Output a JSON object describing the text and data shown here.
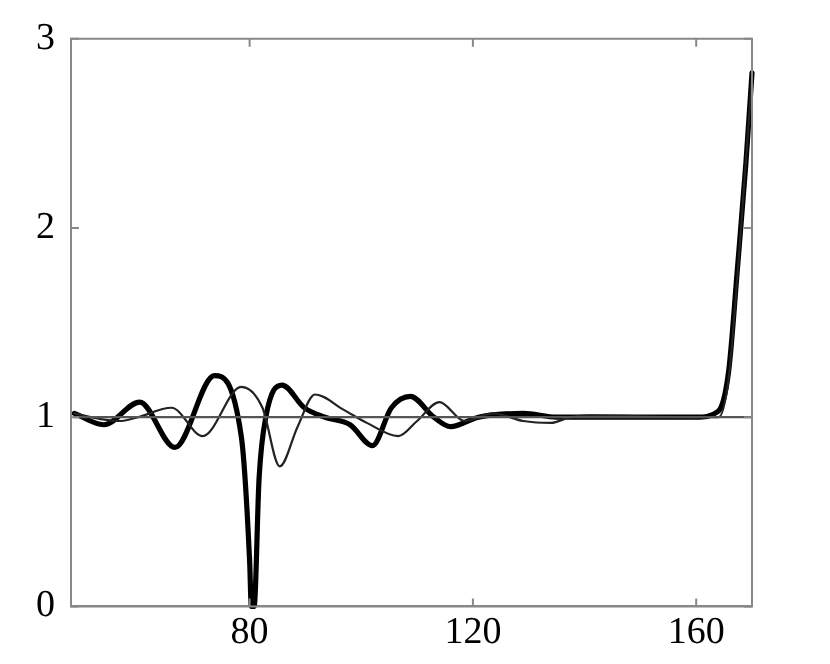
{
  "chart_data": {
    "type": "line",
    "xlim": [
      48,
      170
    ],
    "xticks": [
      80,
      120,
      160
    ],
    "ylim": [
      0,
      3
    ],
    "yticks": [
      0,
      1,
      2,
      3
    ],
    "grid": false,
    "legend": false,
    "marker": "none",
    "line_style": "solid",
    "series": [
      {
        "color": "#000000",
        "x": [
          48.6,
          53.9,
          60.3,
          66.6,
          73.7,
          78.5,
          80,
          80.3,
          80.8,
          81.7,
          82.9,
          85.8,
          89.8,
          93.5,
          98,
          102,
          105.4,
          108.8,
          113,
          116,
          121,
          129,
          135,
          160,
          163.9,
          165.8,
          167.4,
          168.9,
          170
        ],
        "values": [
          1.02,
          0.96,
          1.08,
          0.84,
          1.22,
          0.9,
          0.24,
          0,
          0,
          0.68,
          1.0,
          1.17,
          1.05,
          1.0,
          0.96,
          0.85,
          1.05,
          1.11,
          1.0,
          0.95,
          1.0,
          1.02,
          1.0,
          1.0,
          1.03,
          1.24,
          1.79,
          2.34,
          2.82
        ]
      },
      {
        "color": "#222222",
        "x": [
          48.6,
          53.3,
          57,
          60,
          66,
          71.6,
          78.5,
          82.3,
          85.4,
          88.6,
          91.7,
          96.8,
          101,
          106.6,
          110,
          114,
          118.5,
          123.6,
          129,
          134,
          137.4,
          141,
          160,
          164,
          165.8,
          167.4,
          170
        ],
        "values": [
          1.02,
          0.99,
          0.98,
          1.0,
          1.05,
          0.9,
          1.16,
          1.05,
          0.74,
          0.95,
          1.12,
          1.04,
          0.97,
          0.9,
          0.98,
          1.08,
          0.98,
          1.02,
          0.98,
          0.97,
          1.0,
          1.01,
          1.0,
          1.0,
          1.2,
          1.75,
          2.8
        ]
      },
      {
        "color": "#555555",
        "x": [
          48.6,
          100,
          140,
          170
        ],
        "values": [
          1.0,
          1.0,
          1.0,
          1.0
        ]
      }
    ]
  }
}
